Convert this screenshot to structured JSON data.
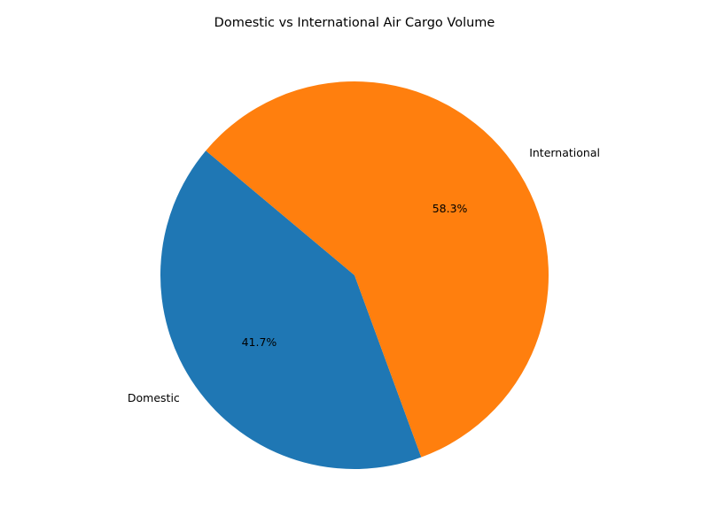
{
  "chart_data": {
    "type": "pie",
    "title": "Domestic vs International Air Cargo Volume",
    "categories": [
      "Domestic",
      "International"
    ],
    "values": [
      41.7,
      58.3
    ],
    "percent_labels": [
      "41.7%",
      "58.3%"
    ],
    "colors": [
      "#1f77b4",
      "#ff7f0e"
    ],
    "start_angle_deg": 140,
    "direction": "counterclockwise",
    "legend": "none"
  }
}
